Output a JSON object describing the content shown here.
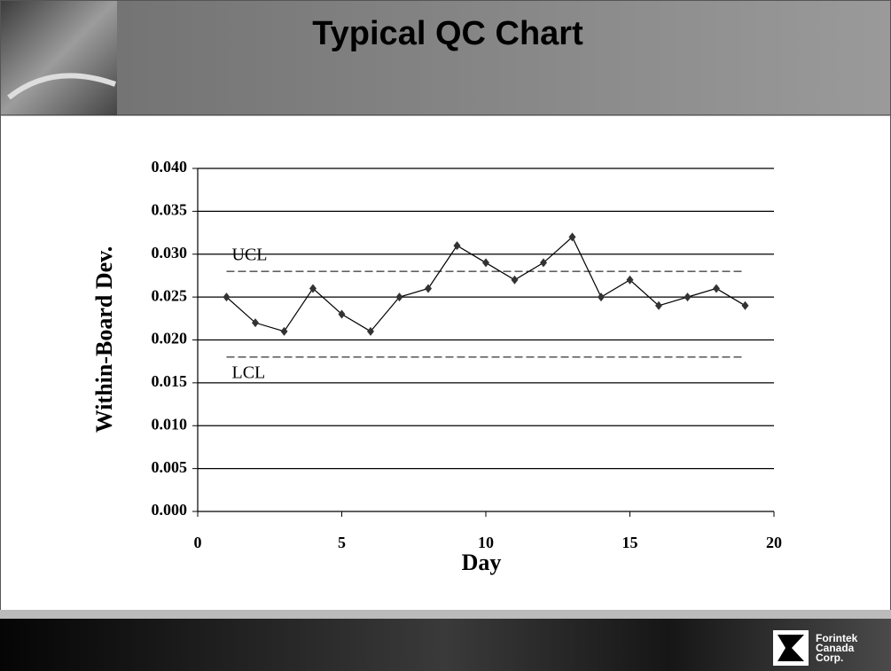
{
  "chart_data": {
    "type": "line",
    "title": "Typical QC Chart",
    "x_label": "Day",
    "y_label": "Within-Board Dev.",
    "x": [
      1,
      2,
      3,
      4,
      5,
      6,
      7,
      8,
      9,
      10,
      11,
      12,
      13,
      14,
      15,
      16,
      17,
      18,
      19
    ],
    "series": [
      {
        "color": "#000000",
        "values": [
          0.025,
          0.022,
          0.021,
          0.026,
          0.023,
          0.021,
          0.025,
          0.026,
          0.031,
          0.029,
          0.027,
          0.029,
          0.032,
          0.025,
          0.027,
          0.024,
          0.025,
          0.026,
          0.024
        ]
      }
    ],
    "control_limits": [
      {
        "label": "UCL",
        "value": 0.028
      },
      {
        "label": "LCL",
        "value": 0.018
      }
    ],
    "xlim": [
      0,
      20
    ],
    "xticks": [
      0,
      5,
      10,
      15,
      20
    ],
    "ylim": [
      0,
      0.04
    ],
    "yticks": [
      {
        "value": 0,
        "label": "0.000"
      },
      {
        "value": 0.005,
        "label": "0.005"
      },
      {
        "value": 0.01,
        "label": "0.010"
      },
      {
        "value": 0.015,
        "label": "0.015"
      },
      {
        "value": 0.02,
        "label": "0.020"
      },
      {
        "value": 0.025,
        "label": "0.025"
      },
      {
        "value": 0.03,
        "label": "0.030"
      },
      {
        "value": 0.035,
        "label": "0.035"
      },
      {
        "value": 0.04,
        "label": "0.040"
      }
    ],
    "grid": true
  },
  "footer": {
    "logo_lines": [
      "Forintek",
      "Canada",
      "Corp."
    ]
  }
}
